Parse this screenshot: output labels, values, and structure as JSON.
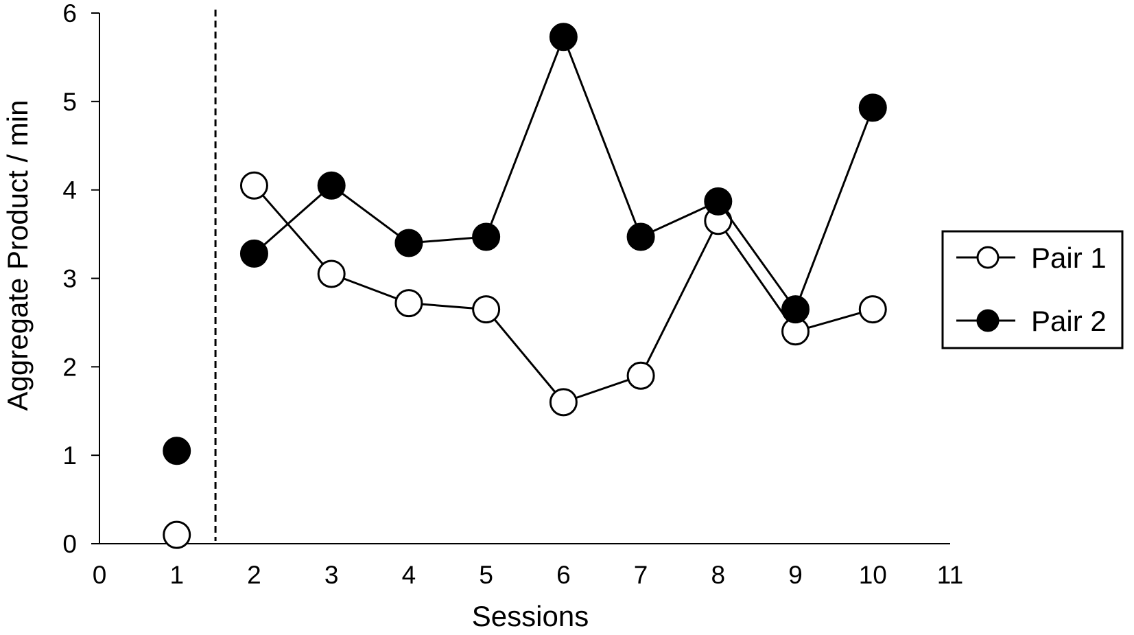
{
  "chart_data": {
    "type": "line",
    "xlabel": "Sessions",
    "ylabel": "Aggregate Product / min",
    "xlim": [
      0,
      11
    ],
    "ylim": [
      0,
      6
    ],
    "xticks": [
      "0",
      "1",
      "2",
      "3",
      "4",
      "5",
      "6",
      "7",
      "8",
      "9",
      "10",
      "11"
    ],
    "yticks": [
      "0",
      "1",
      "2",
      "3",
      "4",
      "5",
      "6"
    ],
    "phase_line_x": 1.5,
    "grid": false,
    "legend_position": "right",
    "series": [
      {
        "name": "Pair 1",
        "marker": "open-circle",
        "color": "#000000",
        "x": [
          1,
          2,
          3,
          4,
          5,
          6,
          7,
          8,
          9,
          10
        ],
        "y": [
          0.1,
          4.05,
          3.05,
          2.72,
          2.65,
          1.6,
          1.9,
          3.65,
          2.4,
          2.65
        ]
      },
      {
        "name": "Pair 2",
        "marker": "filled-circle",
        "color": "#000000",
        "x": [
          1,
          2,
          3,
          4,
          5,
          6,
          7,
          8,
          9,
          10
        ],
        "y": [
          1.05,
          3.28,
          4.05,
          3.4,
          3.47,
          5.73,
          3.47,
          3.87,
          2.65,
          4.93
        ]
      }
    ]
  }
}
